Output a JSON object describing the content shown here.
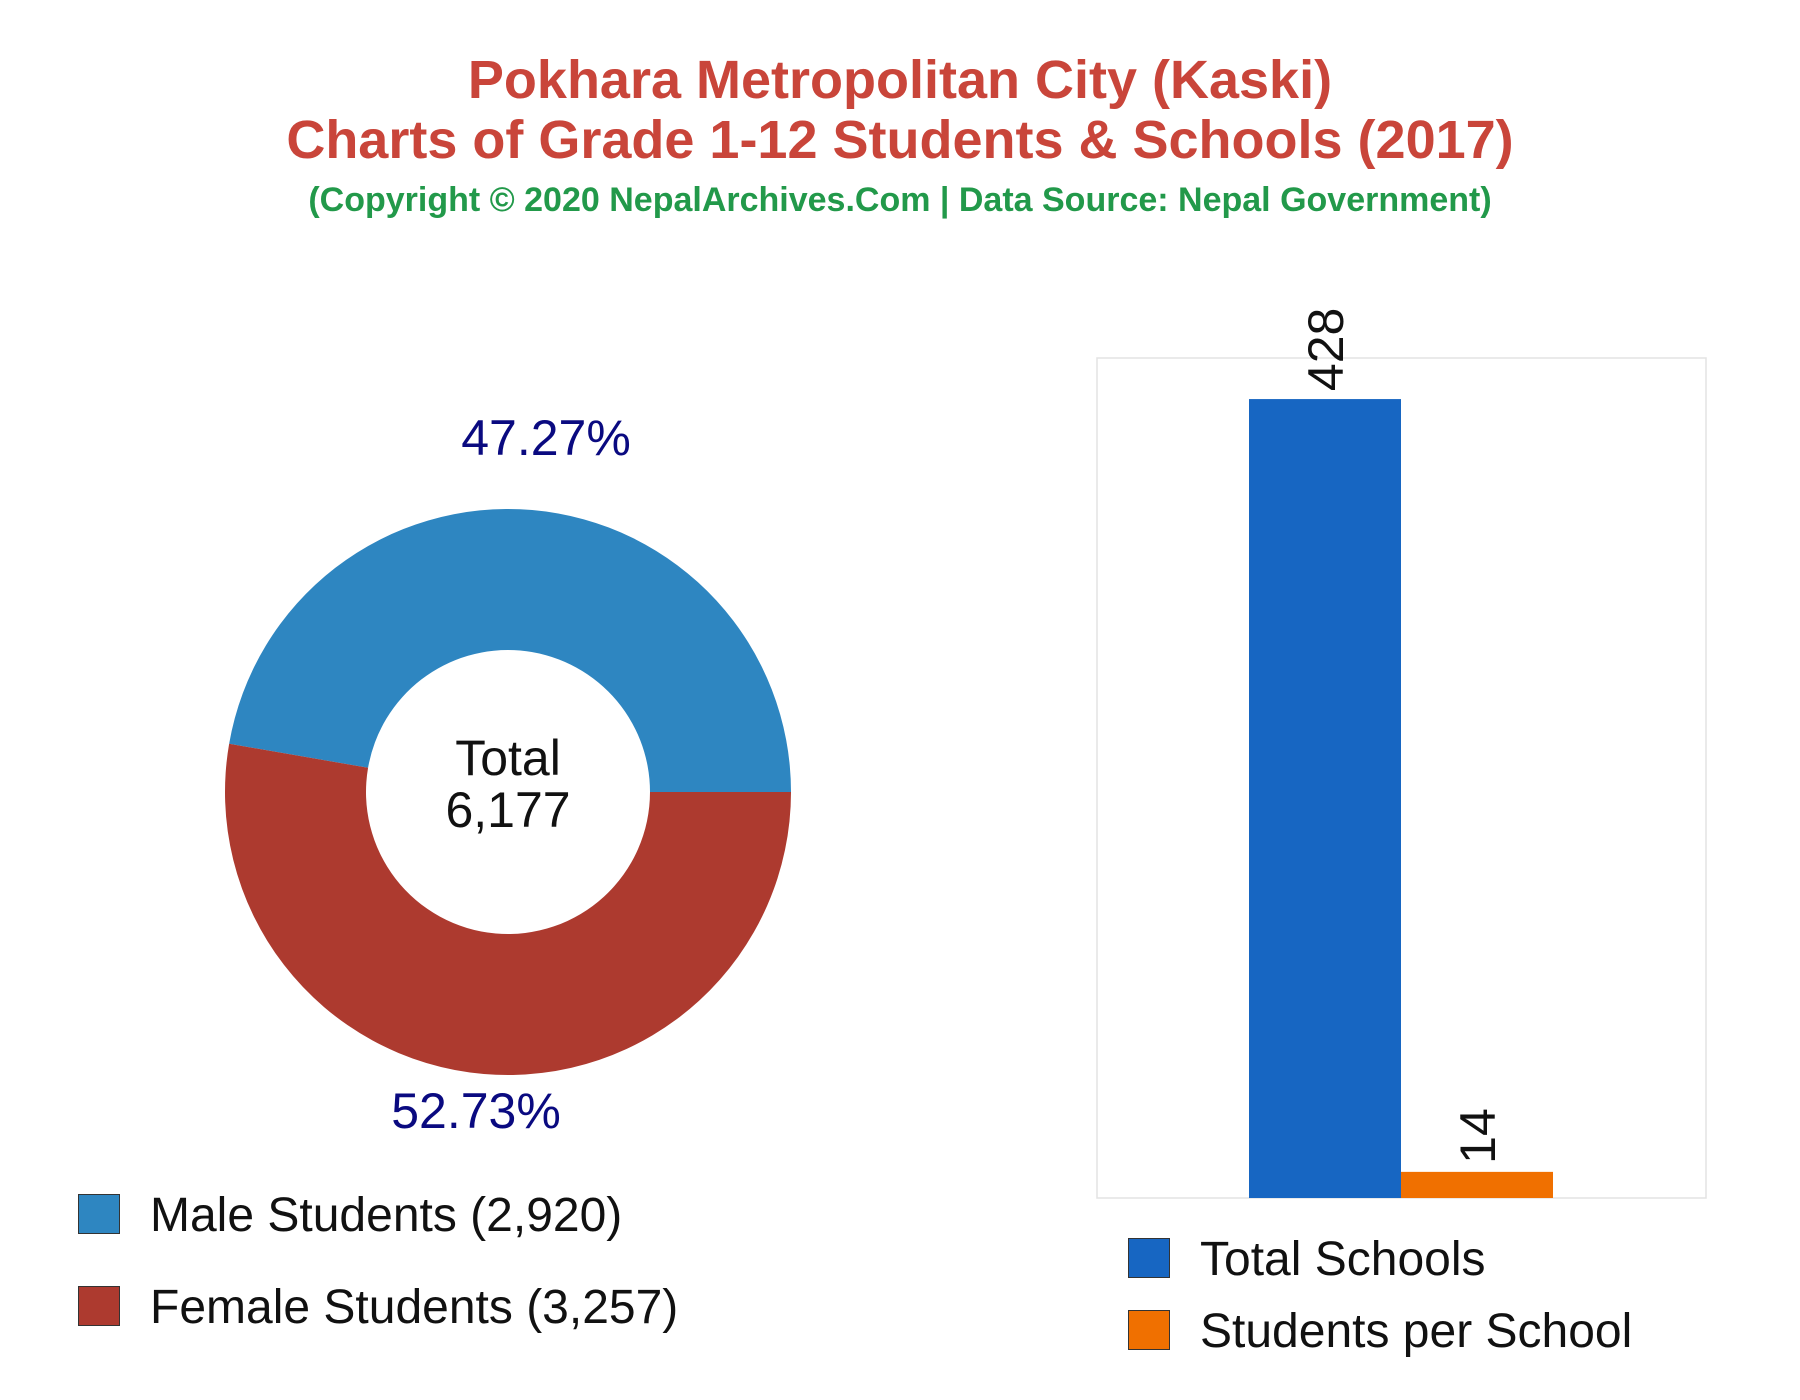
{
  "header": {
    "title_line1": "Pokhara Metropolitan City (Kaski)",
    "title_line2": "Charts of Grade 1-12 Students & Schools (2017)",
    "subtitle": "(Copyright © 2020 NepalArchives.Com | Data Source: Nepal Government)"
  },
  "colors": {
    "title": "#c9453a",
    "subtitle": "#22994a",
    "male": "#2e86c1",
    "female": "#ad3a2f",
    "schools": "#1766c2",
    "students_per_school": "#f07000",
    "percent_labels": "#0a0a80"
  },
  "chart_data": [
    {
      "type": "pie",
      "style": "donut",
      "center_label": [
        "Total",
        "6,177"
      ],
      "slices": [
        {
          "label": "Male Students (2,920)",
          "value": 2920,
          "percent": "47.27%",
          "color": "#2e86c1"
        },
        {
          "label": "Female Students (3,257)",
          "value": 3257,
          "percent": "52.73%",
          "color": "#ad3a2f"
        }
      ],
      "legend_position": "bottom-left"
    },
    {
      "type": "bar",
      "categories": [
        "Total Schools",
        "Students per School"
      ],
      "values": [
        428,
        14
      ],
      "value_labels": [
        "428",
        "14"
      ],
      "colors": [
        "#1766c2",
        "#f07000"
      ],
      "ylim": [
        0,
        450
      ],
      "grid": false,
      "legend_position": "bottom"
    }
  ]
}
